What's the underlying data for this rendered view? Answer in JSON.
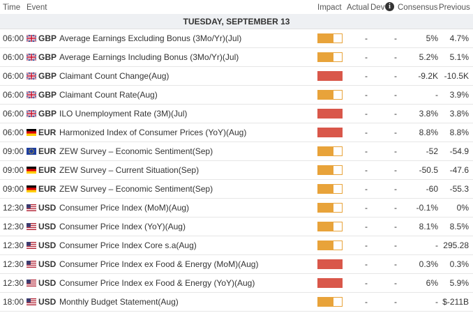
{
  "header": {
    "time": "Time",
    "event": "Event",
    "impact": "Impact",
    "actual": "Actual",
    "dev": "Dev",
    "consensus": "Consensus",
    "previous": "Previous"
  },
  "date": "TUESDAY, SEPTEMBER 13",
  "table": {
    "rows": [
      {
        "time": "06:00",
        "flag": "uk",
        "currency": "GBP",
        "event": "Average Earnings Excluding Bonus (3Mo/Yr)(Jul)",
        "impact": "medium",
        "actual": "-",
        "dev": "-",
        "consensus": "5%",
        "previous": "4.7%"
      },
      {
        "time": "06:00",
        "flag": "uk",
        "currency": "GBP",
        "event": "Average Earnings Including Bonus (3Mo/Yr)(Jul)",
        "impact": "medium",
        "actual": "-",
        "dev": "-",
        "consensus": "5.2%",
        "previous": "5.1%"
      },
      {
        "time": "06:00",
        "flag": "uk",
        "currency": "GBP",
        "event": "Claimant Count Change(Aug)",
        "impact": "high",
        "actual": "-",
        "dev": "-",
        "consensus": "-9.2K",
        "previous": "-10.5K"
      },
      {
        "time": "06:00",
        "flag": "uk",
        "currency": "GBP",
        "event": "Claimant Count Rate(Aug)",
        "impact": "medium",
        "actual": "-",
        "dev": "-",
        "consensus": "-",
        "previous": "3.9%"
      },
      {
        "time": "06:00",
        "flag": "uk",
        "currency": "GBP",
        "event": "ILO Unemployment Rate (3M)(Jul)",
        "impact": "high",
        "actual": "-",
        "dev": "-",
        "consensus": "3.8%",
        "previous": "3.8%"
      },
      {
        "time": "06:00",
        "flag": "de",
        "currency": "EUR",
        "event": "Harmonized Index of Consumer Prices (YoY)(Aug)",
        "impact": "high",
        "actual": "-",
        "dev": "-",
        "consensus": "8.8%",
        "previous": "8.8%"
      },
      {
        "time": "09:00",
        "flag": "eu",
        "currency": "EUR",
        "event": "ZEW Survey – Economic Sentiment(Sep)",
        "impact": "medium",
        "actual": "-",
        "dev": "-",
        "consensus": "-52",
        "previous": "-54.9"
      },
      {
        "time": "09:00",
        "flag": "de",
        "currency": "EUR",
        "event": "ZEW Survey – Current Situation(Sep)",
        "impact": "medium",
        "actual": "-",
        "dev": "-",
        "consensus": "-50.5",
        "previous": "-47.6"
      },
      {
        "time": "09:00",
        "flag": "de",
        "currency": "EUR",
        "event": "ZEW Survey – Economic Sentiment(Sep)",
        "impact": "medium",
        "actual": "-",
        "dev": "-",
        "consensus": "-60",
        "previous": "-55.3"
      },
      {
        "time": "12:30",
        "flag": "us",
        "currency": "USD",
        "event": "Consumer Price Index (MoM)(Aug)",
        "impact": "medium",
        "actual": "-",
        "dev": "-",
        "consensus": "-0.1%",
        "previous": "0%"
      },
      {
        "time": "12:30",
        "flag": "us",
        "currency": "USD",
        "event": "Consumer Price Index (YoY)(Aug)",
        "impact": "medium",
        "actual": "-",
        "dev": "-",
        "consensus": "8.1%",
        "previous": "8.5%"
      },
      {
        "time": "12:30",
        "flag": "us",
        "currency": "USD",
        "event": "Consumer Price Index Core s.a(Aug)",
        "impact": "medium",
        "actual": "-",
        "dev": "-",
        "consensus": "-",
        "previous": "295.28"
      },
      {
        "time": "12:30",
        "flag": "us",
        "currency": "USD",
        "event": "Consumer Price Index ex Food & Energy (MoM)(Aug)",
        "impact": "high",
        "actual": "-",
        "dev": "-",
        "consensus": "0.3%",
        "previous": "0.3%"
      },
      {
        "time": "12:30",
        "flag": "us",
        "currency": "USD",
        "event": "Consumer Price Index ex Food & Energy (YoY)(Aug)",
        "impact": "high",
        "actual": "-",
        "dev": "-",
        "consensus": "6%",
        "previous": "5.9%"
      },
      {
        "time": "18:00",
        "flag": "us",
        "currency": "USD",
        "event": "Monthly Budget Statement(Aug)",
        "impact": "medium",
        "actual": "-",
        "dev": "-",
        "consensus": "-",
        "previous": "$-211B"
      }
    ]
  }
}
